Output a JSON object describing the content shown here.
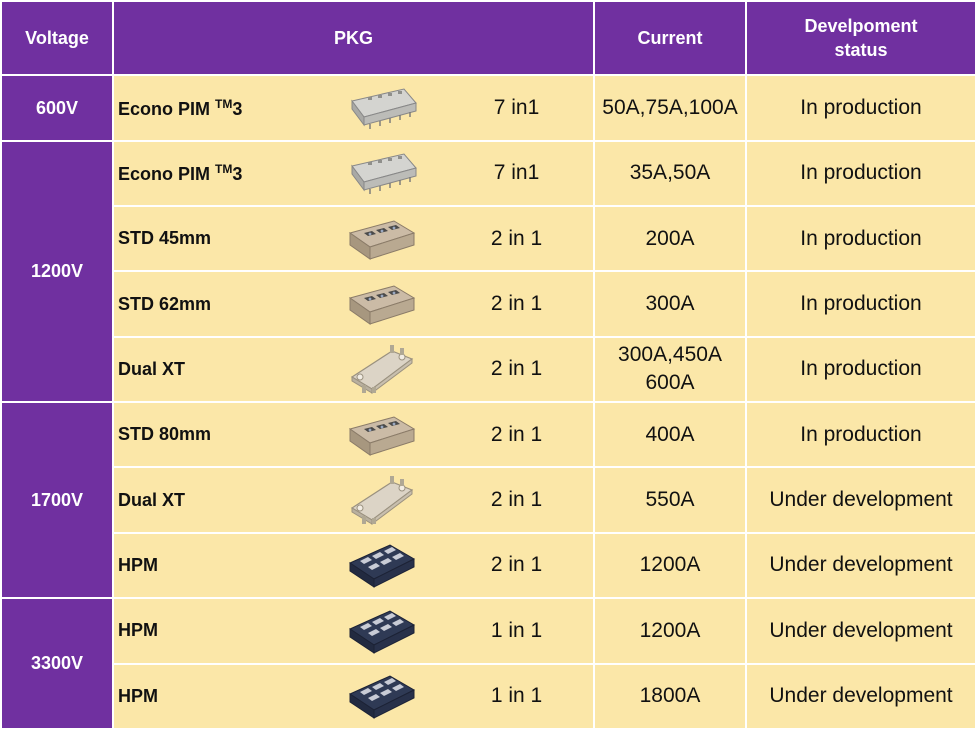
{
  "header": {
    "voltage": "Voltage",
    "pkg": "PKG",
    "current": "Current",
    "status_line1": "Develpoment",
    "status_line2": "status"
  },
  "groups": [
    {
      "voltage": "600V"
    },
    {
      "voltage": "1200V"
    },
    {
      "voltage": "1700V"
    },
    {
      "voltage": "3300V"
    }
  ],
  "rows": [
    {
      "name": "Econo PIM",
      "tm": "TM",
      "suffix": "3",
      "config": "7 in1",
      "current_line1": "50A,75A,100A",
      "current_line2": "",
      "status": "In production",
      "module_icon": "econo-pim-module-icon"
    },
    {
      "name": "Econo PIM",
      "tm": "TM",
      "suffix": "3",
      "config": "7 in1",
      "current_line1": "35A,50A",
      "current_line2": "",
      "status": "In production",
      "module_icon": "econo-pim-module-icon"
    },
    {
      "name": "STD 45mm",
      "config": "2 in 1",
      "current_line1": "200A",
      "current_line2": "",
      "status": "In production",
      "module_icon": "std-module-icon"
    },
    {
      "name": "STD 62mm",
      "config": "2 in 1",
      "current_line1": "300A",
      "current_line2": "",
      "status": "In production",
      "module_icon": "std-module-icon"
    },
    {
      "name": "Dual XT",
      "config": "2 in 1",
      "current_line1": "300A,450A",
      "current_line2": "600A",
      "status": "In production",
      "module_icon": "dual-xt-module-icon"
    },
    {
      "name": "STD 80mm",
      "config": "2 in 1",
      "current_line1": "400A",
      "current_line2": "",
      "status": "In production",
      "module_icon": "std-module-icon"
    },
    {
      "name": "Dual XT",
      "config": "2 in 1",
      "current_line1": "550A",
      "current_line2": "",
      "status": "Under development",
      "module_icon": "dual-xt-module-icon"
    },
    {
      "name": "HPM",
      "config": "2 in 1",
      "current_line1": "1200A",
      "current_line2": "",
      "status": "Under development",
      "module_icon": "hpm-module-icon"
    },
    {
      "name": "HPM",
      "config": "1 in 1",
      "current_line1": "1200A",
      "current_line2": "",
      "status": "Under development",
      "module_icon": "hpm-module-icon"
    },
    {
      "name": "HPM",
      "config": "1 in 1",
      "current_line1": "1800A",
      "current_line2": "",
      "status": "Under development",
      "module_icon": "hpm-module-icon"
    }
  ],
  "colors": {
    "header_bg": "#7030a0",
    "cell_bg": "#fbe7a8",
    "text": "#111111",
    "header_text": "#ffffff"
  }
}
